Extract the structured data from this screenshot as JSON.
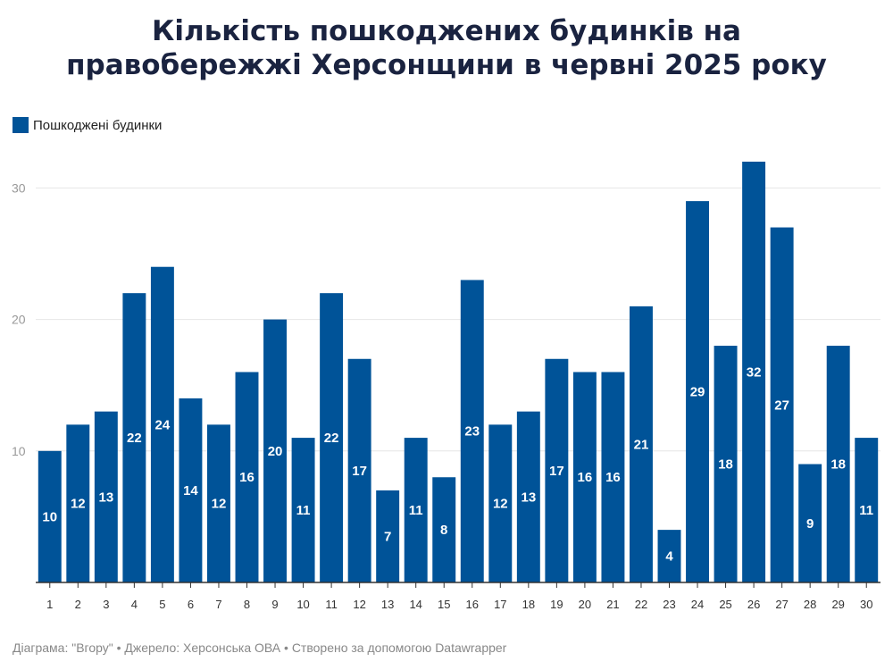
{
  "title_line1": "Кількість пошкоджених будинків на",
  "title_line2": "правобережжі Херсонщини в червні 2025 року",
  "colors": {
    "bar": "#005398",
    "grid": "#e6e6e6",
    "axis": "#333333"
  },
  "chart_data": {
    "type": "bar",
    "categories": [
      "1",
      "2",
      "3",
      "4",
      "5",
      "6",
      "7",
      "8",
      "9",
      "10",
      "11",
      "12",
      "13",
      "14",
      "15",
      "16",
      "17",
      "18",
      "19",
      "20",
      "21",
      "22",
      "23",
      "24",
      "25",
      "26",
      "27",
      "28",
      "29",
      "30"
    ],
    "series": [
      {
        "name": "Пошкоджені будинки",
        "values": [
          10,
          12,
          13,
          22,
          24,
          14,
          12,
          16,
          20,
          11,
          22,
          17,
          7,
          11,
          8,
          23,
          12,
          13,
          17,
          16,
          16,
          21,
          4,
          29,
          18,
          32,
          27,
          9,
          18,
          11
        ]
      }
    ],
    "yticks": [
      "10",
      "20",
      "30"
    ],
    "ylim": [
      0,
      32
    ],
    "grid": true,
    "legend_position": "top-left",
    "data_labels": "inside-bars"
  },
  "footer": "Діаграма: \"Вгору\" • Джерело: Херсонська ОВА • Створено за допомогою Datawrapper"
}
